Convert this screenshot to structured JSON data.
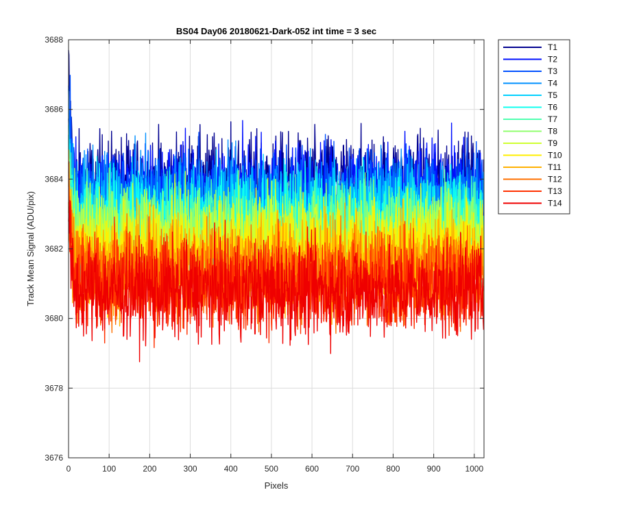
{
  "chart_data": {
    "type": "line",
    "title": "BS04 Day06 20180621-Dark-052 int time = 3 sec",
    "xlabel": "Pixels",
    "ylabel": "Track Mean Signal (ADU/pix)",
    "xlim": [
      0,
      1024
    ],
    "ylim": [
      3676,
      3688
    ],
    "x_ticks": [
      0,
      100,
      200,
      300,
      400,
      500,
      600,
      700,
      800,
      900,
      1000
    ],
    "y_ticks": [
      3676,
      3678,
      3680,
      3682,
      3684,
      3686,
      3688
    ],
    "grid": true,
    "legend_position": "outside-top-right",
    "num_points": 1024,
    "noise_amplitude_approx": 1.3,
    "series": [
      {
        "name": "T1",
        "color": "#00008f",
        "mean": 3683.9,
        "start_peak": 3687.6
      },
      {
        "name": "T2",
        "color": "#0010ff",
        "mean": 3683.7,
        "start_peak": 3686.8
      },
      {
        "name": "T3",
        "color": "#0050ff",
        "mean": 3683.5,
        "start_peak": 3686.3
      },
      {
        "name": "T4",
        "color": "#0090ff",
        "mean": 3683.3,
        "start_peak": 3686.0
      },
      {
        "name": "T5",
        "color": "#00d0ff",
        "mean": 3683.0,
        "start_peak": 3685.8
      },
      {
        "name": "T6",
        "color": "#10ffef",
        "mean": 3682.8,
        "start_peak": 3685.5
      },
      {
        "name": "T7",
        "color": "#50ffaf",
        "mean": 3682.6,
        "start_peak": 3685.2
      },
      {
        "name": "T8",
        "color": "#90ff6f",
        "mean": 3682.4,
        "start_peak": 3685.0
      },
      {
        "name": "T9",
        "color": "#cfff30",
        "mean": 3682.2,
        "start_peak": 3684.8
      },
      {
        "name": "T10",
        "color": "#ffef00",
        "mean": 3681.9,
        "start_peak": 3684.5
      },
      {
        "name": "T11",
        "color": "#ffb000",
        "mean": 3681.6,
        "start_peak": 3684.3
      },
      {
        "name": "T12",
        "color": "#ff7000",
        "mean": 3681.3,
        "start_peak": 3684.0
      },
      {
        "name": "T13",
        "color": "#ff3000",
        "mean": 3681.0,
        "start_peak": 3683.8
      },
      {
        "name": "T14",
        "color": "#ef0000",
        "mean": 3680.8,
        "start_peak": 3683.5
      }
    ]
  }
}
